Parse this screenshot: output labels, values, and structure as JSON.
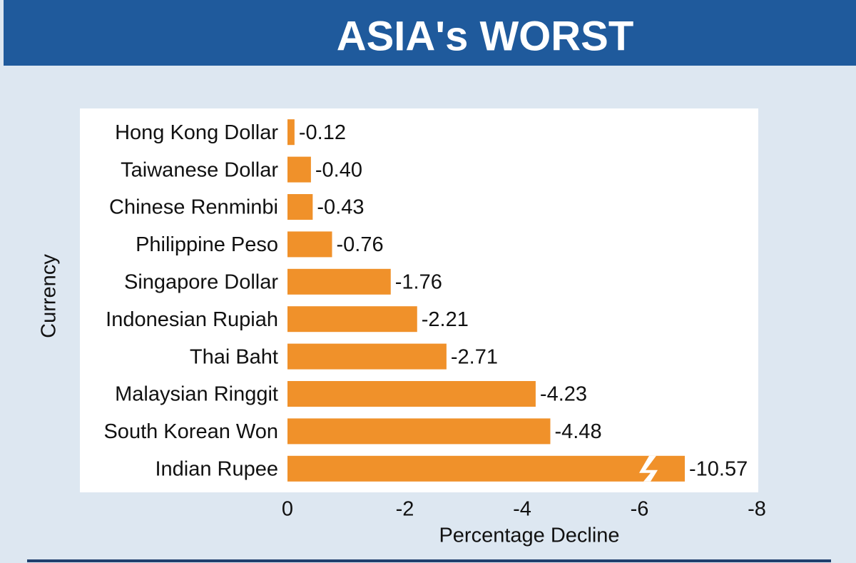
{
  "chart_data": {
    "type": "bar",
    "orientation": "horizontal",
    "title": "ASIA's WORST",
    "x_label": "Percentage Decline",
    "y_label": "Currency",
    "categories": [
      "Hong Kong Dollar",
      "Taiwanese Dollar",
      "Chinese Renminbi",
      "Philippine Peso",
      "Singapore Dollar",
      "Indonesian Rupiah",
      "Thai Baht",
      "Malaysian Ringgit",
      "South Korean Won",
      "Indian Rupee"
    ],
    "values": [
      -0.12,
      -0.4,
      -0.43,
      -0.76,
      -1.76,
      -2.21,
      -2.71,
      -4.23,
      -4.48,
      -10.57
    ],
    "value_labels": [
      "-0.12",
      "-0.40",
      "-0.43",
      "-0.76",
      "-1.76",
      "-2.21",
      "-2.71",
      "-4.23",
      "-4.48",
      "-10.57"
    ],
    "color": "#f0912a",
    "xlim": [
      0,
      -8
    ],
    "xticks": [
      0,
      -2,
      -4,
      -6,
      -8
    ]
  }
}
